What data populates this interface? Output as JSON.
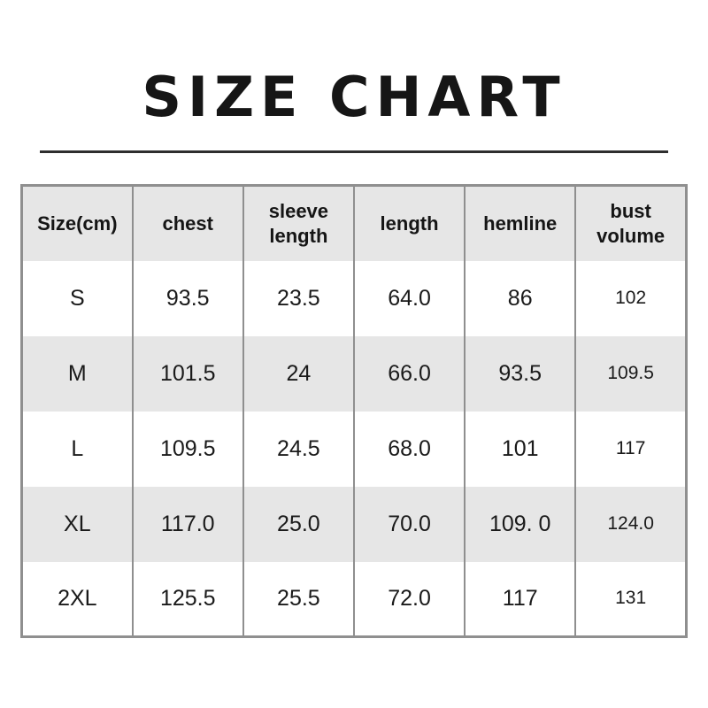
{
  "page": {
    "title": "SIZE CHART"
  },
  "table": {
    "headers": [
      "Size(cm)",
      "chest",
      "sleeve length",
      "length",
      "hemline",
      "bust volume"
    ],
    "rows": [
      [
        "S",
        "93.5",
        "23.5",
        "64.0",
        "86",
        "102"
      ],
      [
        "M",
        "101.5",
        "24",
        "66.0",
        "93.5",
        "109.5"
      ],
      [
        "L",
        "109.5",
        "24.5",
        "68.0",
        "101",
        "117"
      ],
      [
        "XL",
        "117.0",
        "25.0",
        "70.0",
        "109. 0",
        "124.0"
      ],
      [
        "2XL",
        "125.5",
        "25.5",
        "72.0",
        "117",
        "131"
      ]
    ]
  },
  "colors": {
    "header_bg": "#e6e6e6",
    "alt_row_bg": "#e6e6e6",
    "row_bg": "#ffffff",
    "table_border": "#8f8f8f",
    "divider": "#2e2e2e",
    "title_text": "#161616",
    "cell_text": "#1a1a1a"
  },
  "chart_data": {
    "type": "table",
    "title": "SIZE CHART",
    "unit": "cm",
    "columns": [
      "Size(cm)",
      "chest",
      "sleeve length",
      "length",
      "hemline",
      "bust volume"
    ],
    "rows": [
      {
        "size": "S",
        "chest": 93.5,
        "sleeve_length": 23.5,
        "length": 64.0,
        "hemline": 86,
        "bust_volume": 102
      },
      {
        "size": "M",
        "chest": 101.5,
        "sleeve_length": 24,
        "length": 66.0,
        "hemline": 93.5,
        "bust_volume": 109.5
      },
      {
        "size": "L",
        "chest": 109.5,
        "sleeve_length": 24.5,
        "length": 68.0,
        "hemline": 101,
        "bust_volume": 117
      },
      {
        "size": "XL",
        "chest": 117.0,
        "sleeve_length": 25.0,
        "length": 70.0,
        "hemline": 109.0,
        "bust_volume": 124.0
      },
      {
        "size": "2XL",
        "chest": 125.5,
        "sleeve_length": 25.5,
        "length": 72.0,
        "hemline": 117,
        "bust_volume": 131
      }
    ],
    "layout": {
      "header_row_shaded": true,
      "alternating_row_shading": [
        "white",
        "gray",
        "white",
        "gray",
        "white"
      ],
      "vertical_gridlines": true,
      "horizontal_gridlines": false
    }
  }
}
